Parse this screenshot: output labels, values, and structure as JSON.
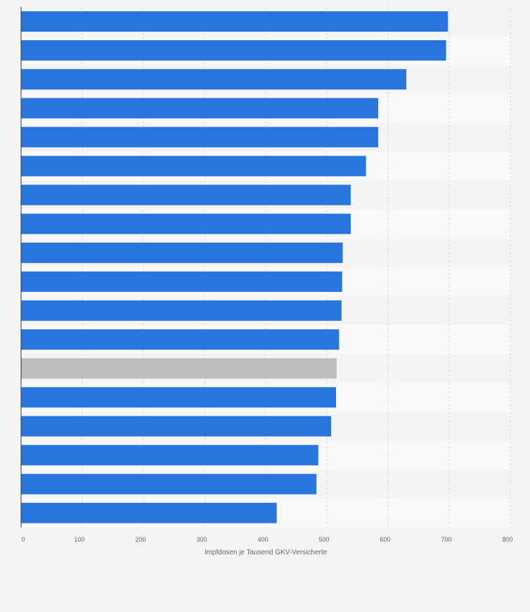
{
  "chart_data": {
    "type": "bar",
    "orientation": "horizontal",
    "title": "",
    "xlabel": "Impfdosen je Tausend GKV-Versicherte",
    "ylabel": "",
    "xlim": [
      0,
      800
    ],
    "xticks": [
      0,
      100,
      200,
      300,
      400,
      500,
      600,
      700,
      800
    ],
    "grid": true,
    "values": [
      698,
      695,
      630,
      584,
      584,
      564,
      539,
      539,
      526,
      525,
      524,
      520,
      516,
      515,
      507,
      486,
      483,
      418
    ],
    "highlight_index": 12,
    "colors": {
      "bar": "#2876dd",
      "highlight": "#bebebe",
      "grid": "#d8d8d8",
      "axis": "#333333"
    }
  }
}
